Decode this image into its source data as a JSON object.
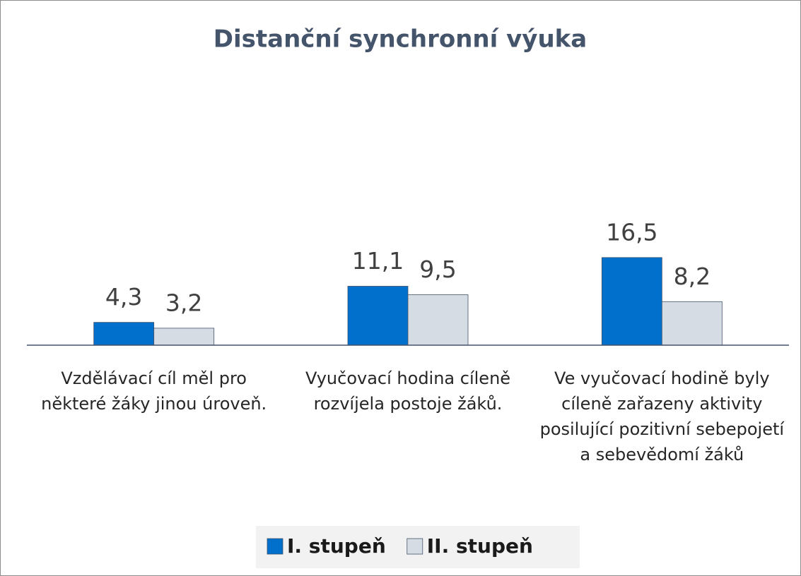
{
  "chart_data": {
    "type": "bar",
    "title": "Distanční synchronní výuka",
    "categories": [
      "Vzdělávací cíl měl pro některé žáky jinou úroveň.",
      "Vyučovací hodina cíleně rozvíjela postoje žáků.",
      "Ve vyučovací hodině byly cíleně zařazeny aktivity posilující pozitivní sebepojetí a sebevědomí žáků"
    ],
    "series": [
      {
        "name": "I. stupeň",
        "color": "#0070cc",
        "values": [
          4.3,
          11.1,
          16.5
        ],
        "value_labels": [
          "4,3",
          "11,1",
          "16,5"
        ]
      },
      {
        "name": "II. stupeň",
        "color": "#d6dce4",
        "values": [
          3.2,
          9.5,
          8.2
        ],
        "value_labels": [
          "3,2",
          "9,5",
          "8,2"
        ]
      }
    ],
    "ylim": [
      0,
      40
    ],
    "legend": "bottom"
  }
}
